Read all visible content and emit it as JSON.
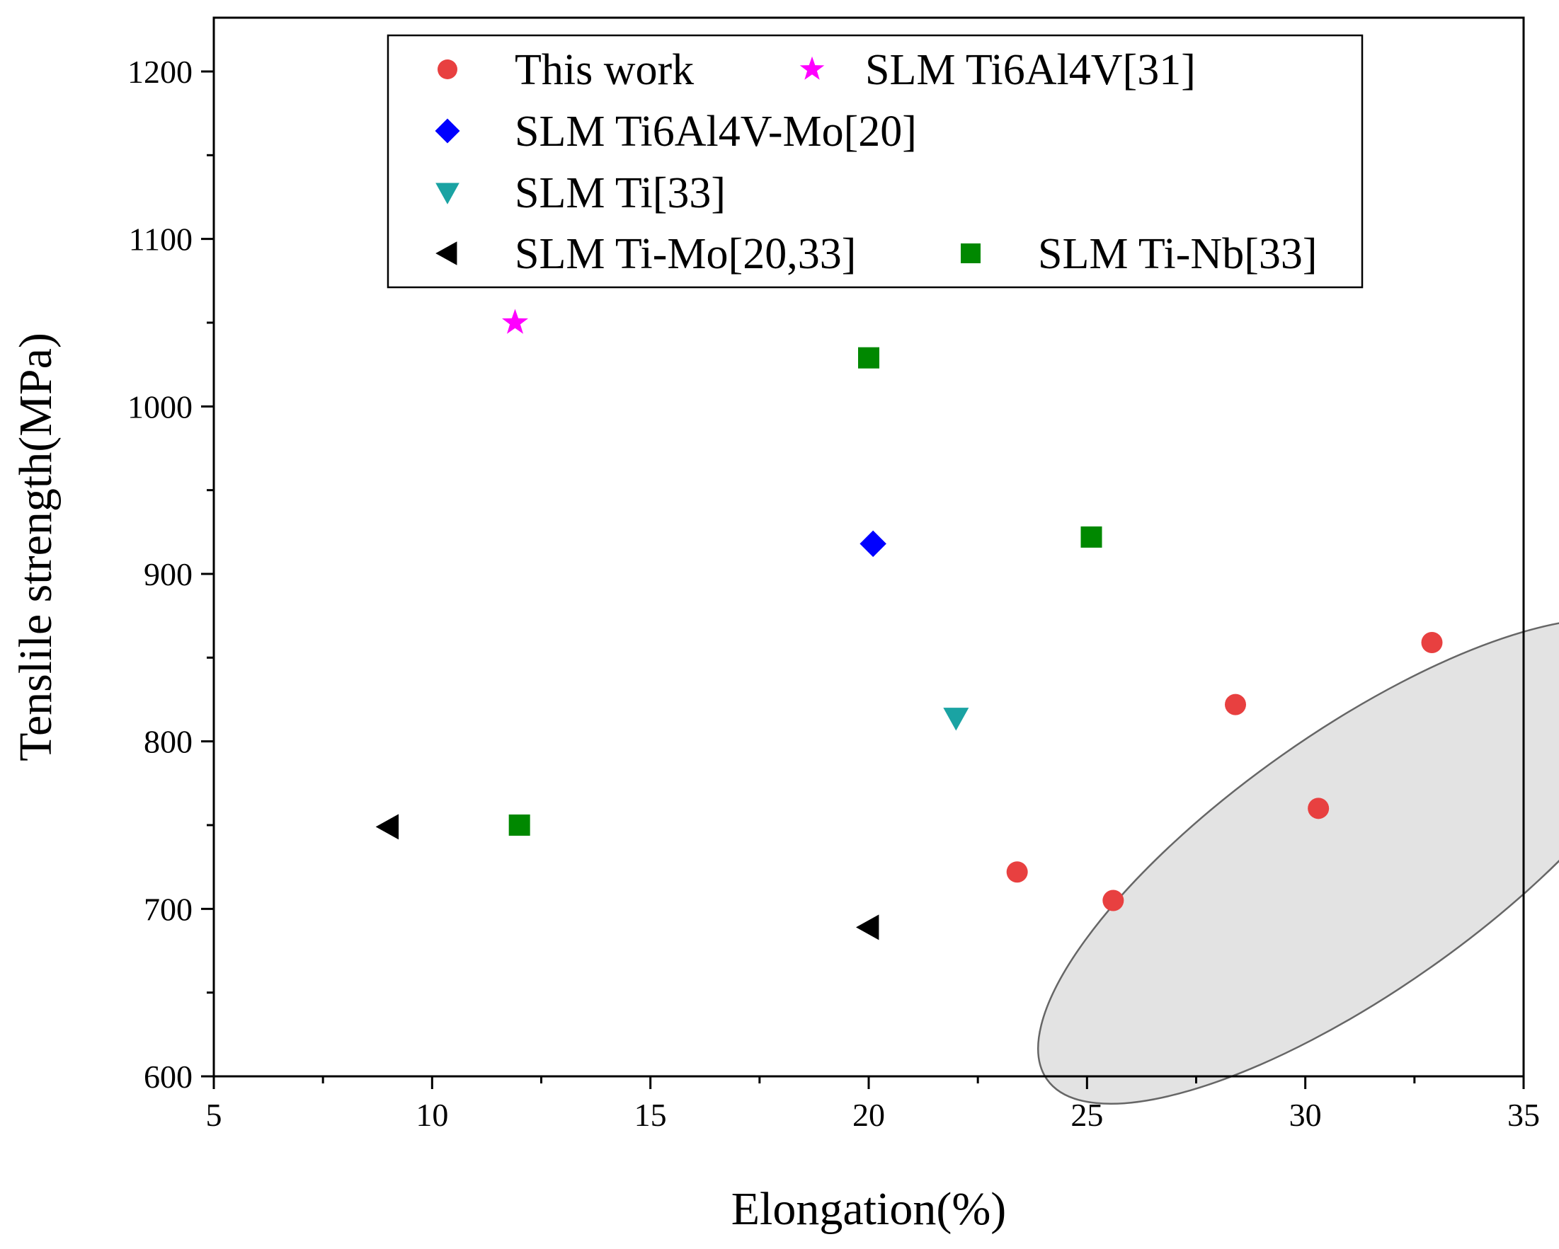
{
  "chart_data": {
    "type": "scatter",
    "xlabel": "Elongation(%)",
    "ylabel": "Tenslile strength(MPa)",
    "xlim": [
      5,
      35
    ],
    "ylim": [
      600,
      1230
    ],
    "xticks": [
      5,
      10,
      15,
      20,
      25,
      30,
      35
    ],
    "yticks": [
      600,
      700,
      800,
      900,
      1000,
      1100,
      1200
    ],
    "grid": false,
    "legend_position": "top",
    "series": [
      {
        "name": "This work",
        "marker": "circle",
        "color": "#e84040",
        "points": [
          [
            23.4,
            722
          ],
          [
            25.6,
            705
          ],
          [
            28.4,
            822
          ],
          [
            30.3,
            760
          ],
          [
            32.9,
            859
          ]
        ]
      },
      {
        "name": "SLM Ti6Al4V[31]",
        "marker": "star",
        "color": "#ff00ff",
        "points": [
          [
            11.9,
            1050
          ]
        ]
      },
      {
        "name": "SLM Ti6Al4V-Mo[20]",
        "marker": "diamond",
        "color": "#0000ff",
        "points": [
          [
            20.1,
            918
          ]
        ]
      },
      {
        "name": "SLM Ti[33]",
        "marker": "triangle-down",
        "color": "#1aa3a3",
        "points": [
          [
            22.0,
            814
          ]
        ]
      },
      {
        "name": "SLM Ti-Mo[20,33]",
        "marker": "triangle-left",
        "color": "#000000",
        "points": [
          [
            9.0,
            749
          ],
          [
            20.0,
            689
          ]
        ]
      },
      {
        "name": "SLM Ti-Nb[33]",
        "marker": "square",
        "color": "#008800",
        "points": [
          [
            12.0,
            750
          ],
          [
            20.0,
            1029
          ],
          [
            25.1,
            922
          ]
        ]
      }
    ],
    "highlight_region": {
      "shape": "ellipse",
      "fill": "#e3e3e3",
      "stroke": "#666666",
      "encloses_series": "This work"
    }
  }
}
